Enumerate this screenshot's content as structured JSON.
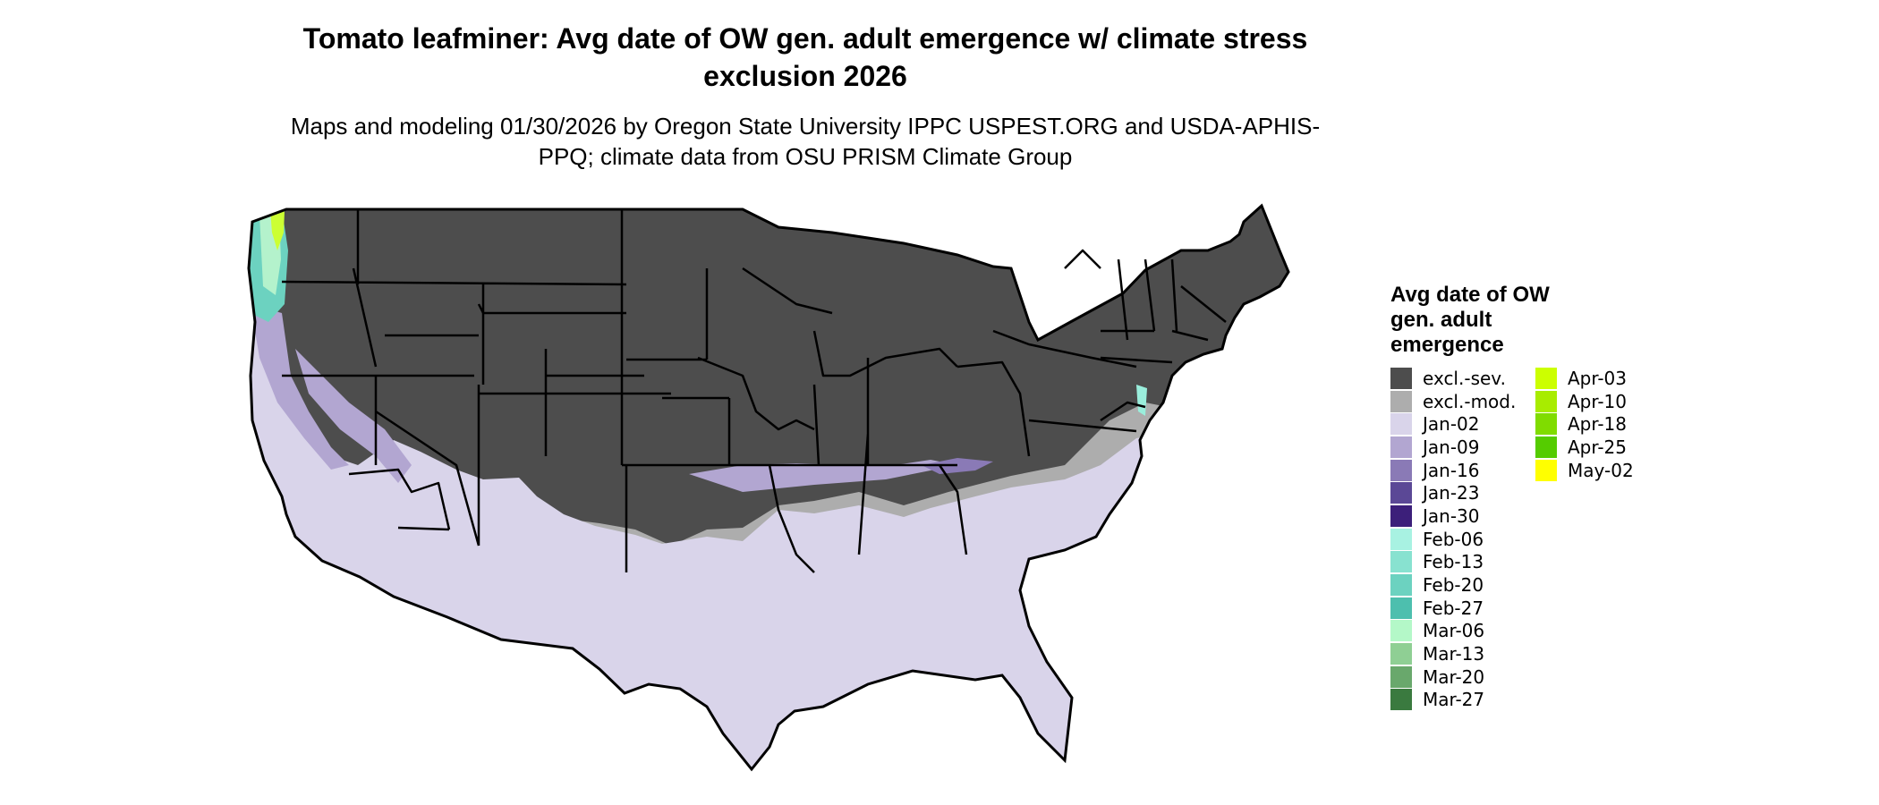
{
  "title": "Tomato leafminer: Avg date of OW gen. adult emergence w/ climate stress exclusion 2026",
  "subtitle": "Maps and modeling 01/30/2026 by Oregon State University IPPC USPEST.ORG and USDA-APHIS-PPQ; climate data from OSU PRISM Climate Group",
  "map": {
    "region": "conterminous-united-states",
    "border_color": "#000000",
    "colors": {
      "excluded_severe": "#4d4d4d",
      "excluded_moderate": "#adadad",
      "jan02": "#d9d4ea",
      "jan09": "#b2a6d1",
      "jan16": "#8a7ab6",
      "pacific_band": "#6cd2c0",
      "pacific_band_light": "#b4f2cc",
      "pacific_band_yellow": "#ccff33",
      "mid_atlantic_band": "#9aeedc"
    }
  },
  "legend": {
    "title": "Avg date of OW gen. adult emergence",
    "items": [
      {
        "label": "excl.-sev.",
        "color": "#4d4d4d"
      },
      {
        "label": "excl.-mod.",
        "color": "#adadad"
      },
      {
        "label": "Jan-02",
        "color": "#d9d4ea"
      },
      {
        "label": "Jan-09",
        "color": "#b2a6d1"
      },
      {
        "label": "Jan-16",
        "color": "#8a7ab6"
      },
      {
        "label": "Jan-23",
        "color": "#5b4896"
      },
      {
        "label": "Jan-30",
        "color": "#3c1f7a"
      },
      {
        "label": "Feb-06",
        "color": "#a8f2e2"
      },
      {
        "label": "Feb-13",
        "color": "#88e2d0"
      },
      {
        "label": "Feb-20",
        "color": "#6cd2c0"
      },
      {
        "label": "Feb-27",
        "color": "#4dbfae"
      },
      {
        "label": "Mar-06",
        "color": "#b4f8c8"
      },
      {
        "label": "Mar-13",
        "color": "#8fcf94"
      },
      {
        "label": "Mar-20",
        "color": "#69a86c"
      },
      {
        "label": "Mar-27",
        "color": "#3a7a3f"
      },
      {
        "label": "Apr-03",
        "color": "#ccff00"
      },
      {
        "label": "Apr-10",
        "color": "#a8ec00"
      },
      {
        "label": "Apr-18",
        "color": "#80dc00"
      },
      {
        "label": "Apr-25",
        "color": "#55cc00"
      },
      {
        "label": "May-02",
        "color": "#ffff00"
      }
    ]
  }
}
